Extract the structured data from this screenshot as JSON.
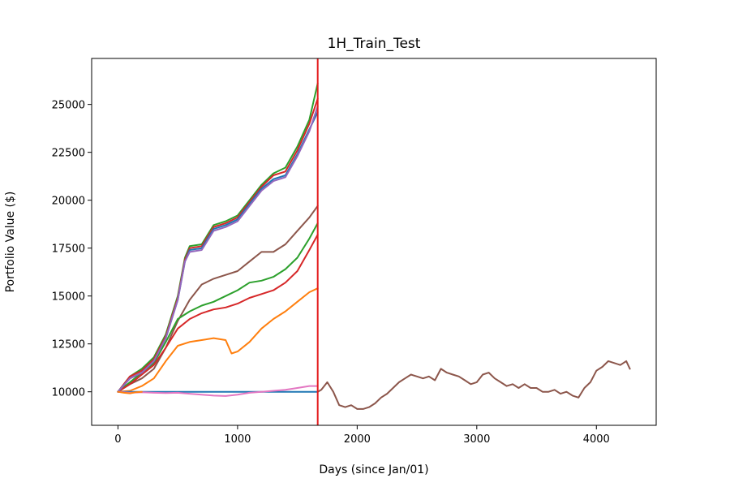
{
  "chart_data": {
    "type": "line",
    "title": "1H_Train_Test",
    "xlabel": "Days (since Jan/01)",
    "ylabel": "Portfolio Value ($)",
    "xlim": [
      -220,
      4500
    ],
    "ylim": [
      8250,
      27400
    ],
    "x_ticks": [
      0,
      1000,
      2000,
      3000,
      4000
    ],
    "y_ticks": [
      10000,
      12500,
      15000,
      17500,
      20000,
      22500,
      25000
    ],
    "grid": false,
    "legend": "none",
    "split_marker": {
      "x": 1670,
      "color": "#e41a1c"
    },
    "series": [
      {
        "color": "#8c564b",
        "points": [
          [
            0,
            10000
          ],
          [
            100,
            10400
          ],
          [
            200,
            10700
          ],
          [
            300,
            11200
          ],
          [
            400,
            12300
          ],
          [
            500,
            13700
          ],
          [
            600,
            14800
          ],
          [
            700,
            15600
          ],
          [
            800,
            15900
          ],
          [
            900,
            16100
          ],
          [
            1000,
            16300
          ],
          [
            1100,
            16800
          ],
          [
            1200,
            17300
          ],
          [
            1300,
            17300
          ],
          [
            1400,
            17700
          ],
          [
            1500,
            18400
          ],
          [
            1600,
            19100
          ],
          [
            1670,
            19700
          ]
        ]
      },
      {
        "color": "#2ca02c",
        "points": [
          [
            0,
            10000
          ],
          [
            100,
            10500
          ],
          [
            200,
            11000
          ],
          [
            300,
            11500
          ],
          [
            400,
            12600
          ],
          [
            500,
            13800
          ],
          [
            600,
            14200
          ],
          [
            700,
            14500
          ],
          [
            800,
            14700
          ],
          [
            900,
            15000
          ],
          [
            1000,
            15300
          ],
          [
            1100,
            15700
          ],
          [
            1200,
            15800
          ],
          [
            1300,
            16000
          ],
          [
            1400,
            16400
          ],
          [
            1500,
            17000
          ],
          [
            1600,
            18000
          ],
          [
            1670,
            18800
          ]
        ]
      },
      {
        "color": "#d62728",
        "points": [
          [
            0,
            10000
          ],
          [
            100,
            10400
          ],
          [
            200,
            10900
          ],
          [
            300,
            11400
          ],
          [
            400,
            12300
          ],
          [
            500,
            13300
          ],
          [
            600,
            13800
          ],
          [
            700,
            14100
          ],
          [
            800,
            14300
          ],
          [
            900,
            14400
          ],
          [
            1000,
            14600
          ],
          [
            1100,
            14900
          ],
          [
            1200,
            15100
          ],
          [
            1300,
            15300
          ],
          [
            1400,
            15700
          ],
          [
            1500,
            16300
          ],
          [
            1600,
            17400
          ],
          [
            1670,
            18200
          ]
        ]
      },
      {
        "color": "#ff7f0e",
        "points": [
          [
            0,
            10000
          ],
          [
            100,
            10050
          ],
          [
            200,
            10300
          ],
          [
            300,
            10700
          ],
          [
            400,
            11600
          ],
          [
            500,
            12400
          ],
          [
            600,
            12600
          ],
          [
            700,
            12700
          ],
          [
            800,
            12800
          ],
          [
            900,
            12700
          ],
          [
            950,
            12000
          ],
          [
            1000,
            12100
          ],
          [
            1100,
            12600
          ],
          [
            1200,
            13300
          ],
          [
            1300,
            13800
          ],
          [
            1400,
            14200
          ],
          [
            1500,
            14700
          ],
          [
            1600,
            15200
          ],
          [
            1670,
            15400
          ]
        ]
      },
      {
        "color": "#2ca02c",
        "points": [
          [
            0,
            10000
          ],
          [
            100,
            10800
          ],
          [
            200,
            11200
          ],
          [
            300,
            11800
          ],
          [
            400,
            13000
          ],
          [
            500,
            15000
          ],
          [
            560,
            17000
          ],
          [
            600,
            17600
          ],
          [
            700,
            17700
          ],
          [
            800,
            18700
          ],
          [
            900,
            18900
          ],
          [
            1000,
            19200
          ],
          [
            1100,
            20000
          ],
          [
            1200,
            20800
          ],
          [
            1300,
            21400
          ],
          [
            1400,
            21700
          ],
          [
            1500,
            22800
          ],
          [
            1600,
            24200
          ],
          [
            1670,
            26100
          ]
        ]
      },
      {
        "color": "#d62728",
        "points": [
          [
            0,
            10000
          ],
          [
            100,
            10800
          ],
          [
            200,
            11100
          ],
          [
            300,
            11700
          ],
          [
            400,
            12900
          ],
          [
            500,
            14900
          ],
          [
            560,
            16900
          ],
          [
            600,
            17500
          ],
          [
            700,
            17600
          ],
          [
            800,
            18600
          ],
          [
            900,
            18800
          ],
          [
            1000,
            19100
          ],
          [
            1100,
            19900
          ],
          [
            1200,
            20700
          ],
          [
            1300,
            21300
          ],
          [
            1400,
            21500
          ],
          [
            1500,
            22600
          ],
          [
            1600,
            24000
          ],
          [
            1670,
            25300
          ]
        ]
      },
      {
        "color": "#1f77b4",
        "points": [
          [
            0,
            10000
          ],
          [
            100,
            10700
          ],
          [
            200,
            11000
          ],
          [
            300,
            11600
          ],
          [
            400,
            12800
          ],
          [
            500,
            14800
          ],
          [
            560,
            16800
          ],
          [
            600,
            17400
          ],
          [
            700,
            17500
          ],
          [
            800,
            18500
          ],
          [
            900,
            18700
          ],
          [
            1000,
            19000
          ],
          [
            1100,
            19800
          ],
          [
            1200,
            20600
          ],
          [
            1300,
            21100
          ],
          [
            1400,
            21300
          ],
          [
            1500,
            22400
          ],
          [
            1600,
            23700
          ],
          [
            1670,
            24600
          ]
        ]
      },
      {
        "color": "#9467bd",
        "points": [
          [
            0,
            10000
          ],
          [
            100,
            10700
          ],
          [
            200,
            11000
          ],
          [
            300,
            11600
          ],
          [
            400,
            12800
          ],
          [
            500,
            14800
          ],
          [
            560,
            16800
          ],
          [
            600,
            17300
          ],
          [
            700,
            17400
          ],
          [
            800,
            18400
          ],
          [
            900,
            18600
          ],
          [
            1000,
            18900
          ],
          [
            1100,
            19700
          ],
          [
            1200,
            20500
          ],
          [
            1300,
            21000
          ],
          [
            1400,
            21200
          ],
          [
            1500,
            22300
          ],
          [
            1600,
            23600
          ],
          [
            1670,
            24900
          ]
        ]
      },
      {
        "color": "#1f77b4",
        "points": [
          [
            0,
            10000
          ],
          [
            1670,
            10000
          ]
        ]
      },
      {
        "color": "#e377c2",
        "points": [
          [
            0,
            10000
          ],
          [
            100,
            9950
          ],
          [
            200,
            9980
          ],
          [
            300,
            9950
          ],
          [
            400,
            9930
          ],
          [
            500,
            9950
          ],
          [
            600,
            9900
          ],
          [
            700,
            9850
          ],
          [
            800,
            9800
          ],
          [
            900,
            9780
          ],
          [
            1000,
            9850
          ],
          [
            1100,
            9950
          ],
          [
            1200,
            10000
          ],
          [
            1300,
            10050
          ],
          [
            1400,
            10100
          ],
          [
            1500,
            10200
          ],
          [
            1600,
            10300
          ],
          [
            1670,
            10300
          ]
        ]
      },
      {
        "color": "#ff7f0e",
        "points": [
          [
            0,
            10000
          ],
          [
            50,
            9950
          ],
          [
            100,
            9920
          ],
          [
            150,
            9980
          ],
          [
            200,
            10000
          ]
        ]
      },
      {
        "color": "#8c564b",
        "points": [
          [
            1670,
            10000
          ],
          [
            1700,
            10100
          ],
          [
            1750,
            10500
          ],
          [
            1800,
            10000
          ],
          [
            1850,
            9300
          ],
          [
            1900,
            9200
          ],
          [
            1950,
            9300
          ],
          [
            2000,
            9100
          ],
          [
            2050,
            9100
          ],
          [
            2100,
            9200
          ],
          [
            2150,
            9400
          ],
          [
            2200,
            9700
          ],
          [
            2250,
            9900
          ],
          [
            2300,
            10200
          ],
          [
            2350,
            10500
          ],
          [
            2400,
            10700
          ],
          [
            2450,
            10900
          ],
          [
            2500,
            10800
          ],
          [
            2550,
            10700
          ],
          [
            2600,
            10800
          ],
          [
            2650,
            10600
          ],
          [
            2700,
            11200
          ],
          [
            2750,
            11000
          ],
          [
            2800,
            10900
          ],
          [
            2850,
            10800
          ],
          [
            2900,
            10600
          ],
          [
            2950,
            10400
          ],
          [
            3000,
            10500
          ],
          [
            3050,
            10900
          ],
          [
            3100,
            11000
          ],
          [
            3150,
            10700
          ],
          [
            3200,
            10500
          ],
          [
            3250,
            10300
          ],
          [
            3300,
            10400
          ],
          [
            3350,
            10200
          ],
          [
            3400,
            10400
          ],
          [
            3450,
            10200
          ],
          [
            3500,
            10200
          ],
          [
            3550,
            10000
          ],
          [
            3600,
            10000
          ],
          [
            3650,
            10100
          ],
          [
            3700,
            9900
          ],
          [
            3750,
            10000
          ],
          [
            3800,
            9800
          ],
          [
            3850,
            9700
          ],
          [
            3900,
            10200
          ],
          [
            3950,
            10500
          ],
          [
            4000,
            11100
          ],
          [
            4050,
            11300
          ],
          [
            4100,
            11600
          ],
          [
            4150,
            11500
          ],
          [
            4200,
            11400
          ],
          [
            4250,
            11600
          ],
          [
            4280,
            11200
          ]
        ]
      }
    ]
  }
}
